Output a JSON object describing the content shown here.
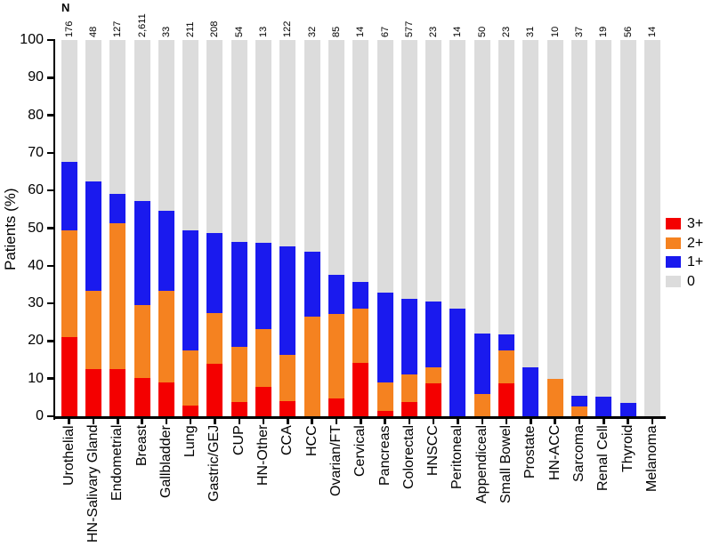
{
  "figure": {
    "n_header": "N",
    "y_axis": {
      "label": "Patients (%)",
      "ticks": [
        0,
        10,
        20,
        30,
        40,
        50,
        60,
        70,
        80,
        90,
        100
      ]
    },
    "legend": [
      {
        "label": "3+",
        "color": "#f40000"
      },
      {
        "label": "2+",
        "color": "#f58220"
      },
      {
        "label": "1+",
        "color": "#1a1aee"
      },
      {
        "label": "0",
        "color": "#dcdcdc"
      }
    ]
  },
  "chart_data": {
    "type": "bar",
    "stacked": true,
    "title": "",
    "xlabel": "",
    "ylabel": "Patients (%)",
    "ylim": [
      0,
      100
    ],
    "grid": false,
    "legend_position": "right",
    "categories": [
      "Urothelial",
      "HN-Salivary Gland",
      "Endometrial",
      "Breast",
      "Gallbladder",
      "Lung",
      "Gastric/GEJ",
      "CUP",
      "HN-Other",
      "CCA",
      "HCC",
      "Ovarian/FT",
      "Cervical",
      "Pancreas",
      "Colorectal",
      "HNSCC",
      "Peritoneal",
      "Appendiceal",
      "Small Bowel",
      "Prostate",
      "HN-ACC",
      "Sarcoma",
      "Renal Cell",
      "Thyroid",
      "Melanoma"
    ],
    "n_values": [
      "176",
      "48",
      "127",
      "2,611",
      "33",
      "211",
      "208",
      "54",
      "13",
      "122",
      "32",
      "85",
      "14",
      "67",
      "577",
      "23",
      "14",
      "50",
      "23",
      "31",
      "10",
      "37",
      "19",
      "56",
      "14"
    ],
    "series": [
      {
        "name": "3+",
        "color": "#f40000",
        "values": [
          21.0,
          12.5,
          12.6,
          10.1,
          9.1,
          2.8,
          13.9,
          3.7,
          7.7,
          4.1,
          0,
          4.7,
          14.3,
          1.5,
          3.8,
          8.7,
          0,
          0,
          8.7,
          0,
          0,
          0,
          0,
          0,
          0
        ]
      },
      {
        "name": "2+",
        "color": "#f58220",
        "values": [
          28.4,
          20.8,
          38.6,
          19.5,
          24.2,
          14.7,
          13.5,
          14.8,
          15.4,
          12.3,
          26.5,
          22.4,
          14.3,
          7.5,
          7.3,
          4.3,
          0,
          6.0,
          8.7,
          0,
          10.0,
          2.7,
          0,
          0,
          0
        ]
      },
      {
        "name": "1+",
        "color": "#1a1aee",
        "values": [
          18.2,
          29.2,
          7.9,
          27.6,
          21.2,
          31.8,
          21.2,
          27.8,
          23.1,
          28.7,
          17.2,
          10.5,
          7.1,
          23.8,
          20.1,
          17.4,
          28.6,
          16.0,
          4.3,
          12.9,
          0,
          2.7,
          5.3,
          3.6,
          0
        ]
      },
      {
        "name": "0",
        "color": "#dcdcdc",
        "values": [
          32.4,
          37.5,
          40.9,
          42.8,
          45.5,
          50.7,
          51.4,
          53.7,
          53.8,
          54.9,
          56.3,
          62.4,
          64.3,
          67.2,
          68.8,
          69.6,
          71.4,
          78.0,
          78.3,
          87.1,
          90.0,
          94.6,
          94.7,
          96.4,
          100
        ]
      }
    ]
  }
}
